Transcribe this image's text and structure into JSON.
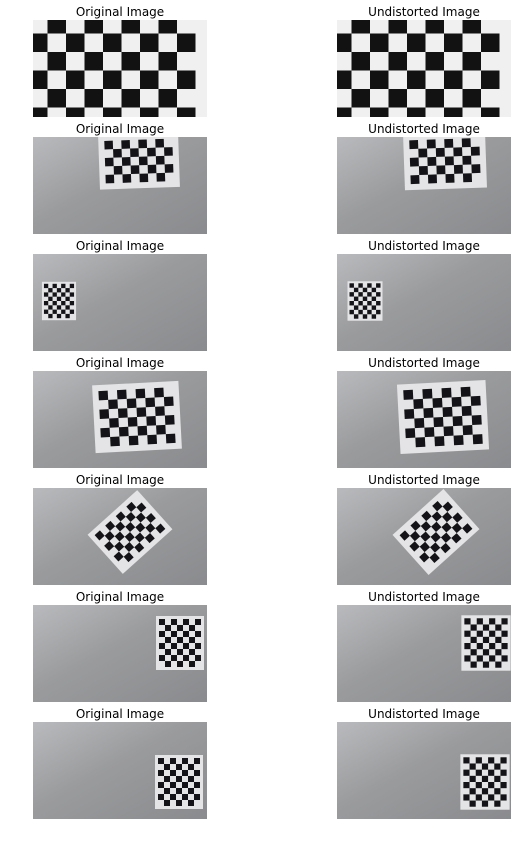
{
  "figure": {
    "rows": [
      {
        "left_title": "Original Image",
        "right_title": "Undistorted Image",
        "scene": "checkerboard-closeup"
      },
      {
        "left_title": "Original Image",
        "right_title": "Undistorted Image",
        "scene": "board-center-right"
      },
      {
        "left_title": "Original Image",
        "right_title": "Undistorted Image",
        "scene": "board-small-left"
      },
      {
        "left_title": "Original Image",
        "right_title": "Undistorted Image",
        "scene": "board-large-right"
      },
      {
        "left_title": "Original Image",
        "right_title": "Undistorted Image",
        "scene": "board-tilted-left"
      },
      {
        "left_title": "Original Image",
        "right_title": "Undistorted Image",
        "scene": "board-edge-right"
      },
      {
        "left_title": "Original Image",
        "right_title": "Undistorted Image",
        "scene": "board-edge-right-low"
      }
    ],
    "colors": {
      "wall": "#9a9b9d",
      "paper": "#e4e4e6",
      "square": "#141418"
    }
  }
}
